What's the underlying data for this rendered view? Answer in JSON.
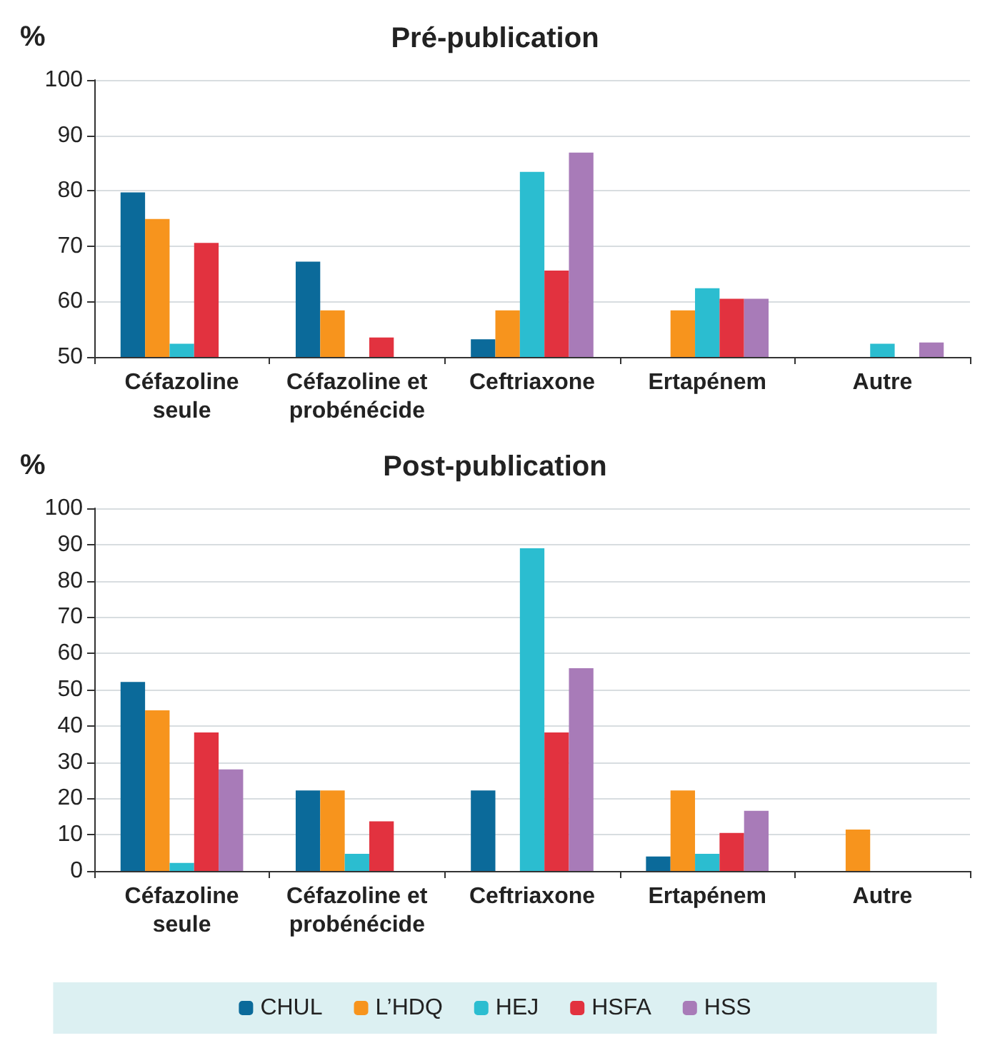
{
  "chart_data": [
    {
      "type": "bar",
      "title": "Pré-publication",
      "ylabel": "%",
      "categories": [
        "Céfazoline\nseule",
        "Céfazoline et\nprobénécide",
        "Ceftriaxone",
        "Ertapénem",
        "Autre"
      ],
      "series": [
        {
          "color": "#0b6a9a",
          "values": [
            79.7,
            67.2,
            53.2,
            null,
            null
          ]
        },
        {
          "color": "#f7941d",
          "values": [
            74.9,
            58.4,
            58.4,
            58.4,
            null
          ]
        },
        {
          "color": "#2bbdd0",
          "values": [
            52.4,
            null,
            83.4,
            62.4,
            52.4
          ]
        },
        {
          "color": "#e2323f",
          "values": [
            70.6,
            53.5,
            65.6,
            60.5,
            null
          ]
        },
        {
          "color": "#a87bb8",
          "values": [
            null,
            null,
            86.9,
            60.5,
            52.6
          ]
        }
      ],
      "ylim": [
        50,
        100
      ],
      "yticks": [
        50,
        60,
        70,
        80,
        90,
        100
      ],
      "grid": "y",
      "legend": false
    },
    {
      "type": "bar",
      "title": "Post-publication",
      "ylabel": "%",
      "categories": [
        "Céfazoline\nseule",
        "Céfazoline et\nprobénécide",
        "Ceftriaxone",
        "Ertapénem",
        "Autre"
      ],
      "series": [
        {
          "name": "CHUL",
          "color": "#0b6a9a",
          "values": [
            52.1,
            22.2,
            22.2,
            4.0,
            null
          ]
        },
        {
          "name": "L’HDQ",
          "color": "#f7941d",
          "values": [
            44.3,
            22.2,
            null,
            22.2,
            11.4
          ]
        },
        {
          "name": "HEJ",
          "color": "#2bbdd0",
          "values": [
            2.2,
            4.7,
            89.0,
            4.7,
            null
          ]
        },
        {
          "name": "HSFA",
          "color": "#e2323f",
          "values": [
            38.2,
            13.7,
            38.2,
            10.5,
            null
          ]
        },
        {
          "name": "HSS",
          "color": "#a87bb8",
          "values": [
            28.0,
            null,
            55.9,
            16.6,
            null
          ]
        }
      ],
      "ylim": [
        0,
        100
      ],
      "yticks": [
        0,
        10,
        20,
        30,
        40,
        50,
        60,
        70,
        80,
        90,
        100
      ],
      "grid": "y",
      "legend": "bottom"
    }
  ]
}
